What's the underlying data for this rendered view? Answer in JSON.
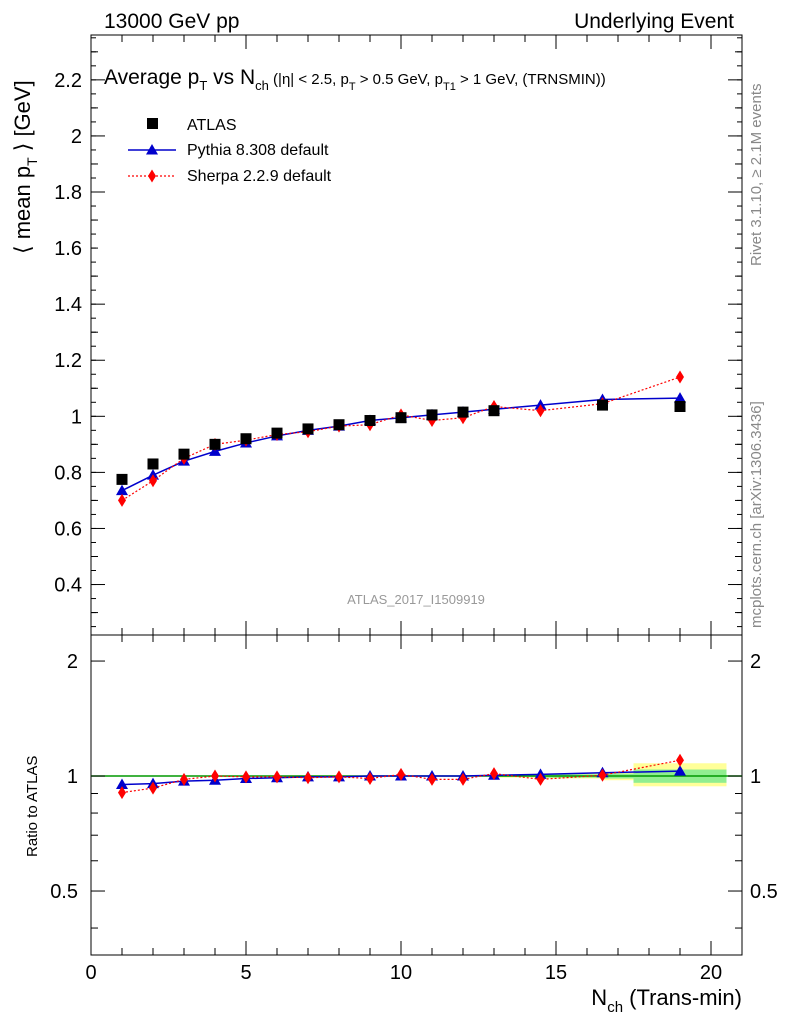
{
  "header": {
    "left": "13000 GeV pp",
    "right": "Underlying Event"
  },
  "side_labels": {
    "rivet": "Rivet 3.1.10, ≥ 2.1M events",
    "mcplots": "mcplots.cern.ch [arXiv:1306.3436]"
  },
  "watermark": "ATLAS_2017_I1509919",
  "title": {
    "lead": "Average p",
    "lead_sub": "T",
    "mid": " vs N",
    "mid_sub": "ch",
    "cut1": " (|η| < 2.5, p",
    "cut1_sub": "T",
    "cut2": " > 0.5 GeV, p",
    "cut2_sub": "T1",
    "cut3": " > 1 GeV, (TRNSMIN))"
  },
  "colors": {
    "data": "#000000",
    "pythia": "#0000cc",
    "sherpa": "#ff0000",
    "band_inner": "#90ee90",
    "band_outer": "#ffff99",
    "ratio_line": "#009900"
  },
  "chart_data": [
    {
      "type": "scatter",
      "panel": "main",
      "ylabel_parts": [
        "⟨ mean p",
        "T",
        " ⟩ [GeV]"
      ],
      "xlim": [
        0,
        21
      ],
      "ylim": [
        0.22,
        2.36
      ],
      "y_ticks": [
        0.4,
        0.6,
        0.8,
        1,
        1.2,
        1.4,
        1.6,
        1.8,
        2,
        2.2
      ],
      "y_tick_labels": [
        "0.4",
        "0.6",
        "0.8",
        "1",
        "1.2",
        "1.4",
        "1.6",
        "1.8",
        "2",
        "2.2"
      ],
      "legend_position": "top-left",
      "series": [
        {
          "name": "ATLAS",
          "marker": "square",
          "x": [
            1,
            2,
            3,
            4,
            5,
            6,
            7,
            8,
            9,
            10,
            11,
            12,
            13,
            16.5,
            19
          ],
          "y": [
            0.775,
            0.83,
            0.865,
            0.9,
            0.92,
            0.94,
            0.955,
            0.97,
            0.985,
            0.995,
            1.005,
            1.015,
            1.02,
            1.04,
            1.035
          ]
        },
        {
          "name": "Pythia 8.308 default",
          "marker": "triangle",
          "x": [
            1,
            2,
            3,
            4,
            5,
            6,
            7,
            8,
            9,
            10,
            11,
            12,
            13,
            14.5,
            16.5,
            19
          ],
          "y": [
            0.735,
            0.79,
            0.84,
            0.875,
            0.905,
            0.93,
            0.95,
            0.965,
            0.985,
            0.995,
            1.005,
            1.015,
            1.025,
            1.04,
            1.06,
            1.065
          ]
        },
        {
          "name": "Sherpa 2.2.9 default",
          "marker": "diamond",
          "x": [
            1,
            2,
            3,
            4,
            5,
            6,
            7,
            8,
            9,
            10,
            11,
            12,
            13,
            14.5,
            16.5,
            19
          ],
          "y": [
            0.7,
            0.77,
            0.85,
            0.9,
            0.915,
            0.935,
            0.945,
            0.965,
            0.97,
            1.005,
            0.985,
            0.995,
            1.035,
            1.02,
            1.045,
            1.14
          ]
        }
      ]
    },
    {
      "type": "scatter",
      "panel": "ratio",
      "ylabel": "Ratio to ATLAS",
      "xlabel_parts": [
        "N",
        "ch",
        " (Trans-min)"
      ],
      "xlim": [
        0,
        21
      ],
      "ylim": [
        0.34,
        2.34
      ],
      "log_y": true,
      "x_ticks": [
        0,
        5,
        10,
        15,
        20
      ],
      "x_tick_labels": [
        "0",
        "5",
        "10",
        "15",
        "20"
      ],
      "y_ticks": [
        0.5,
        1,
        2
      ],
      "y_tick_labels": [
        "0.5",
        "1",
        "2"
      ],
      "band": {
        "x": [
          13,
          14.5,
          16.5,
          17.5,
          19,
          20.5
        ],
        "inner": [
          [
            0.995,
            1.005
          ],
          [
            0.99,
            1.01
          ],
          [
            0.985,
            1.015
          ],
          [
            0.96,
            1.04
          ],
          [
            0.96,
            1.04
          ]
        ],
        "outer": [
          [
            0.99,
            1.01
          ],
          [
            0.985,
            1.015
          ],
          [
            0.975,
            1.025
          ],
          [
            0.94,
            1.08
          ],
          [
            0.94,
            1.08
          ]
        ]
      },
      "series": [
        {
          "name": "Pythia 8.308 default",
          "marker": "triangle",
          "x": [
            1,
            2,
            3,
            4,
            5,
            6,
            7,
            8,
            9,
            10,
            11,
            12,
            13,
            14.5,
            16.5,
            19
          ],
          "y": [
            0.95,
            0.955,
            0.97,
            0.975,
            0.985,
            0.99,
            0.995,
            0.995,
            1.0,
            1.0,
            1.0,
            1.0,
            1.005,
            1.01,
            1.02,
            1.03
          ]
        },
        {
          "name": "Sherpa 2.2.9 default",
          "marker": "diamond",
          "x": [
            1,
            2,
            3,
            4,
            5,
            6,
            7,
            8,
            9,
            10,
            11,
            12,
            13,
            14.5,
            16.5,
            19
          ],
          "y": [
            0.905,
            0.93,
            0.98,
            1.0,
            0.995,
            0.995,
            0.99,
            0.995,
            0.985,
            1.01,
            0.98,
            0.98,
            1.015,
            0.98,
            1.005,
            1.1
          ]
        }
      ]
    }
  ]
}
